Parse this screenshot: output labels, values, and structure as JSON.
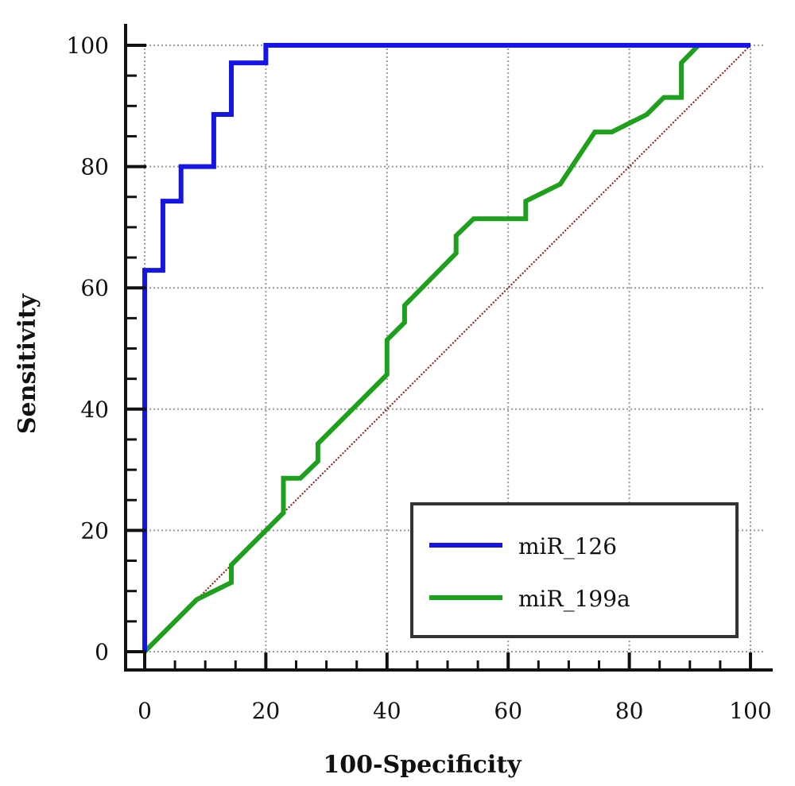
{
  "chart_data": {
    "type": "line",
    "title": "",
    "xlabel": "100-Specificity",
    "ylabel": "Sensitivity",
    "xlim": [
      0,
      100
    ],
    "ylim": [
      0,
      100
    ],
    "xticks": [
      "0",
      "20",
      "40",
      "60",
      "80",
      "100"
    ],
    "yticks": [
      "0",
      "20",
      "40",
      "60",
      "80",
      "100"
    ],
    "grid": true,
    "legend": "bottom-right",
    "reference_line": {
      "x": [
        0,
        100
      ],
      "y": [
        0,
        100
      ],
      "color": "#8b1a1a",
      "style": "dotted"
    },
    "series": [
      {
        "name": "miR_126",
        "color": "#1515e6",
        "x": [
          0,
          0,
          3,
          3,
          6,
          6,
          11.4,
          11.4,
          14.3,
          14.3,
          20,
          20,
          91.4,
          100
        ],
        "y": [
          0,
          62.9,
          62.9,
          74.3,
          74.3,
          80,
          80,
          88.6,
          88.6,
          97.1,
          97.1,
          100,
          100,
          100
        ]
      },
      {
        "name": "miR_199a",
        "color": "#1ea01e",
        "x": [
          0,
          8.6,
          14.3,
          14.3,
          22.9,
          22.9,
          25.7,
          28.6,
          28.6,
          34.3,
          40,
          40,
          42.9,
          42.9,
          51.4,
          51.4,
          54.3,
          62.9,
          62.9,
          68.6,
          74.3,
          77.1,
          82.9,
          85.7,
          88.6,
          88.6,
          91.4,
          100
        ],
        "y": [
          0,
          8.6,
          11.4,
          14.3,
          22.9,
          28.6,
          28.6,
          31.4,
          34.3,
          40,
          45.7,
          51.4,
          54.3,
          57.1,
          65.7,
          68.6,
          71.4,
          71.4,
          74.3,
          77.1,
          85.7,
          85.7,
          88.6,
          91.4,
          91.4,
          97.1,
          100,
          100
        ]
      }
    ]
  }
}
